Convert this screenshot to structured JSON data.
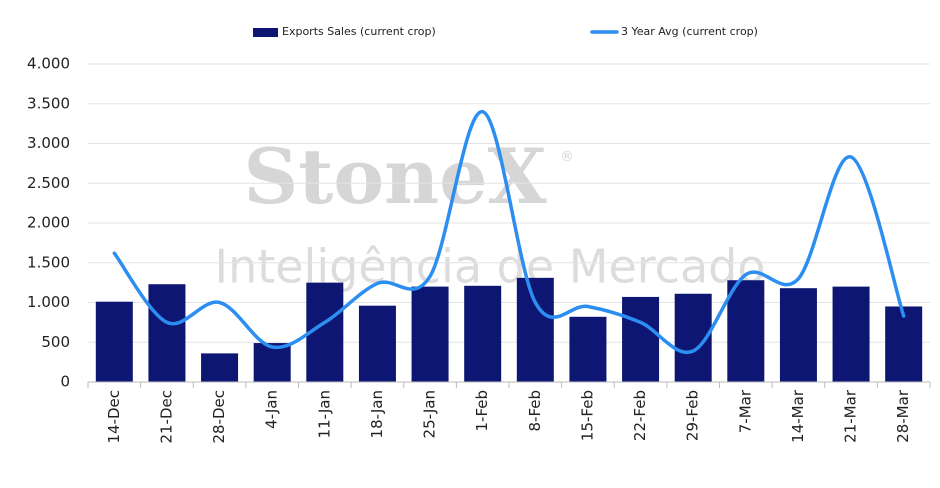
{
  "chart_data": {
    "type": "bar_line",
    "watermark": {
      "brand": "StoneX",
      "mark": "®",
      "tagline": "Inteligência de Mercado"
    },
    "categories": [
      "14-Dec",
      "21-Dec",
      "28-Dec",
      "4-Jan",
      "11-Jan",
      "18-Jan",
      "25-Jan",
      "1-Feb",
      "8-Feb",
      "15-Feb",
      "22-Feb",
      "29-Feb",
      "7-Mar",
      "14-Mar",
      "21-Mar",
      "28-Mar"
    ],
    "series": [
      {
        "name": "Exports Sales (current crop)",
        "type": "bar",
        "color": "#0d1773",
        "values": [
          1010,
          1230,
          360,
          490,
          1250,
          960,
          1200,
          1210,
          1310,
          820,
          1070,
          1110,
          1280,
          1180,
          1200,
          950
        ]
      },
      {
        "name": "3 Year Avg (current crop)",
        "type": "line",
        "color": "#2b8ef0",
        "values": [
          1620,
          750,
          1000,
          440,
          750,
          1240,
          1330,
          3400,
          1000,
          950,
          750,
          390,
          1350,
          1300,
          2830,
          830
        ]
      }
    ],
    "ylim": [
      0,
      4000
    ],
    "yticks": [
      0,
      500,
      {
        "value": 1000,
        "label": "1.000"
      },
      {
        "value": 1500,
        "label": "1.500"
      },
      {
        "value": 2000,
        "label": "2.000"
      },
      {
        "value": 2500,
        "label": "2.500"
      },
      {
        "value": 3000,
        "label": "3.000"
      },
      {
        "value": 3500,
        "label": "3.500"
      },
      {
        "value": 4000,
        "label": "4.000"
      }
    ],
    "grid": true
  }
}
